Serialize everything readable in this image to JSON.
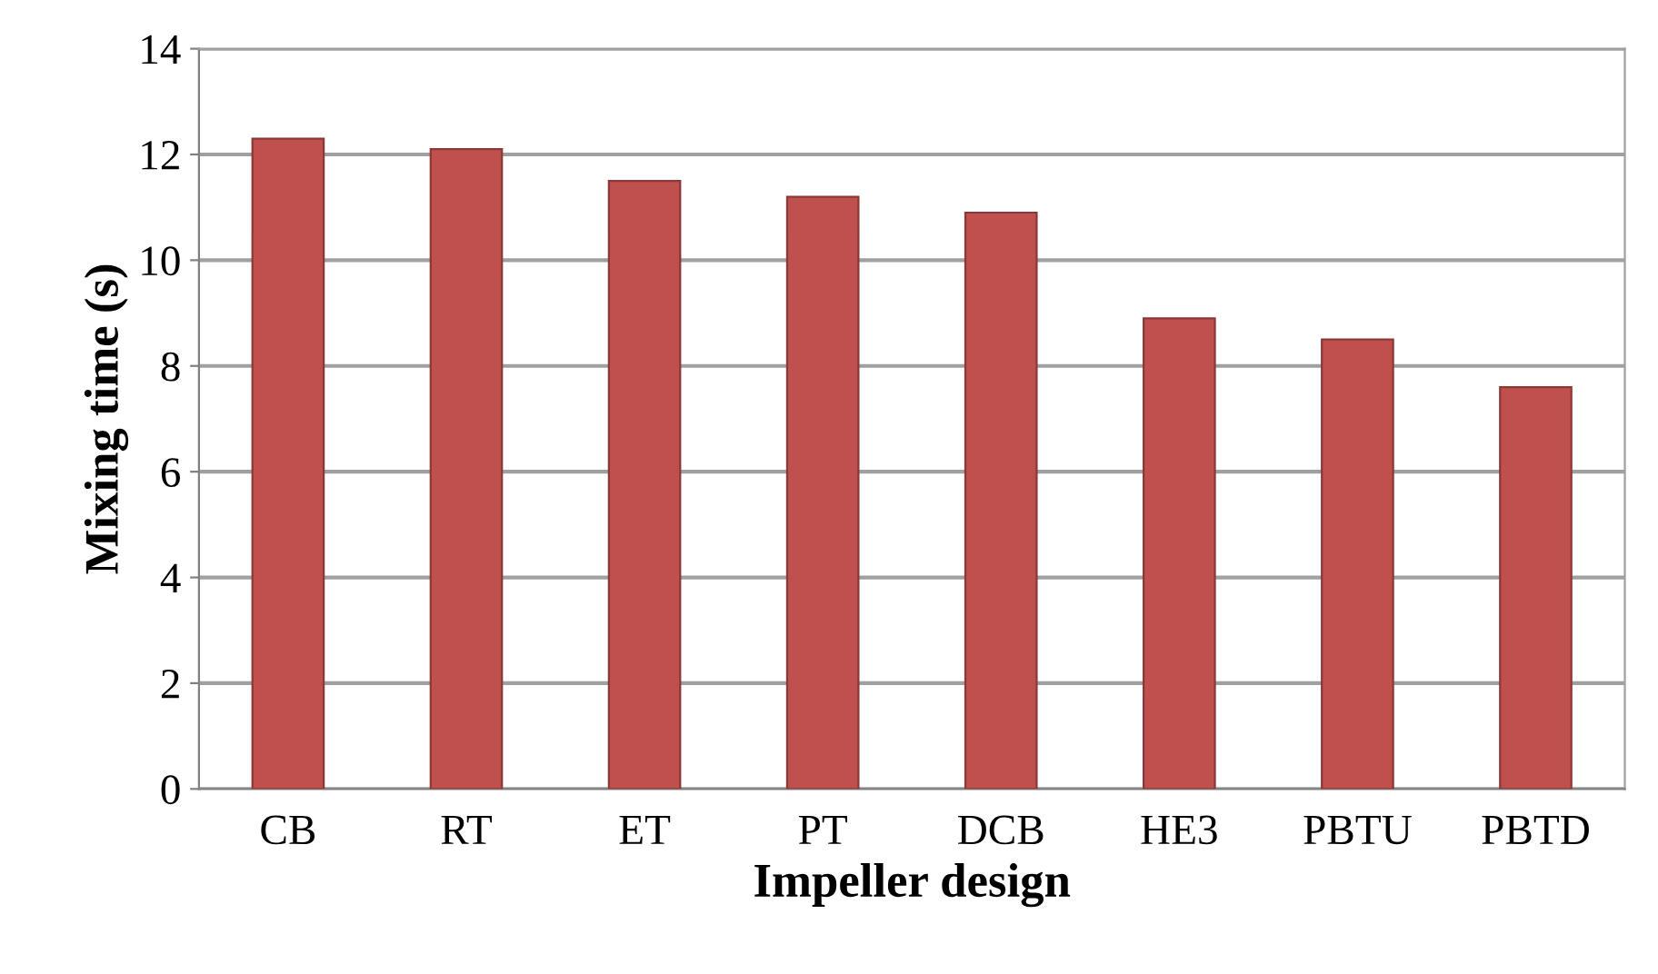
{
  "chart_data": {
    "type": "bar",
    "xlabel": "Impeller design",
    "ylabel": "Mixing time (s)",
    "categories": [
      "CB",
      "RT",
      "ET",
      "PT",
      "DCB",
      "HE3",
      "PBTU",
      "PBTD"
    ],
    "values": [
      12.3,
      12.1,
      11.5,
      11.2,
      10.9,
      8.9,
      8.5,
      7.6
    ],
    "color": "#c0504d",
    "ylim": [
      0,
      14
    ],
    "yticks": [
      0,
      2,
      4,
      6,
      8,
      10,
      12,
      14
    ],
    "grid": "y"
  }
}
